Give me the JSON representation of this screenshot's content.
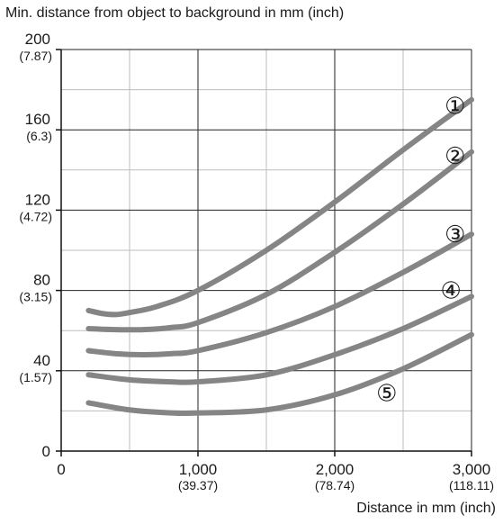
{
  "chart_data": {
    "type": "line",
    "title": "",
    "ylabel": "Min. distance from object to background in mm (inch)",
    "xlabel": "Distance in mm (inch)",
    "xlim": [
      0,
      3000
    ],
    "ylim": [
      0,
      200
    ],
    "grid": true,
    "legend": "none",
    "x_ticks": [
      {
        "value": 0,
        "label": "0",
        "sub": ""
      },
      {
        "value": 1000,
        "label": "1,000",
        "sub": "(39.37)"
      },
      {
        "value": 2000,
        "label": "2,000",
        "sub": "(78.74)"
      },
      {
        "value": 3000,
        "label": "3,000",
        "sub": "(118.11)"
      }
    ],
    "y_ticks": [
      {
        "value": 0,
        "label": "0",
        "sub": ""
      },
      {
        "value": 40,
        "label": "40",
        "sub": "(1.57)"
      },
      {
        "value": 80,
        "label": "80",
        "sub": "(3.15)"
      },
      {
        "value": 120,
        "label": "120",
        "sub": "(4.72)"
      },
      {
        "value": 160,
        "label": "160",
        "sub": "(6.3)"
      },
      {
        "value": 200,
        "label": "200",
        "sub": "(7.87)"
      }
    ],
    "x_minor_grid": [
      500,
      1500,
      2500
    ],
    "y_minor_grid": [
      20,
      60,
      100,
      140,
      180
    ],
    "series": [
      {
        "marker": "①",
        "marker_x": 2880,
        "marker_y": 172,
        "x": [
          200,
          300,
          400,
          500,
          700,
          1000,
          1500,
          2000,
          2500,
          3000
        ],
        "y": [
          70,
          68.5,
          68,
          69,
          72,
          80,
          100,
          124,
          150,
          175
        ]
      },
      {
        "marker": "②",
        "marker_x": 2880,
        "marker_y": 147,
        "x": [
          200,
          400,
          600,
          800,
          1000,
          1500,
          2000,
          2500,
          3000
        ],
        "y": [
          61,
          60.5,
          60.5,
          61.5,
          64,
          78,
          99,
          123,
          149
        ]
      },
      {
        "marker": "③",
        "marker_x": 2880,
        "marker_y": 108,
        "x": [
          200,
          400,
          600,
          800,
          1000,
          1500,
          2000,
          2500,
          3000
        ],
        "y": [
          50,
          48.5,
          48,
          48.5,
          50,
          59,
          72,
          89,
          108
        ]
      },
      {
        "marker": "④",
        "marker_x": 2850,
        "marker_y": 80,
        "x": [
          200,
          500,
          800,
          1000,
          1500,
          2000,
          2500,
          3000
        ],
        "y": [
          38,
          35.5,
          34.5,
          34.5,
          38,
          48,
          61,
          77
        ]
      },
      {
        "marker": "⑤",
        "marker_x": 2380,
        "marker_y": 29,
        "x": [
          200,
          500,
          800,
          1000,
          1500,
          2000,
          2500,
          3000
        ],
        "y": [
          24,
          20.5,
          19,
          19,
          20.5,
          28,
          41,
          58
        ]
      }
    ],
    "colors": {
      "curve": "#858585",
      "grid_major": "#222222",
      "grid_minor": "#bdbdbd",
      "axis": "#111111",
      "text": "#1a1a1a"
    }
  }
}
